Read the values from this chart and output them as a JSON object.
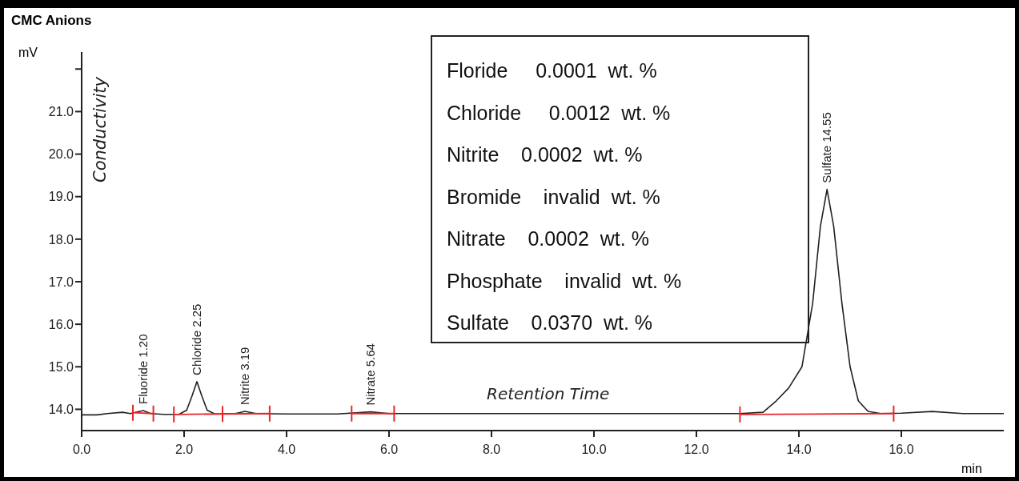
{
  "chart_data": {
    "type": "line",
    "title": "CMC Anions",
    "xlabel": "min",
    "ylabel": "mV",
    "xlim": [
      0,
      18
    ],
    "ylim": [
      13.5,
      22.4
    ],
    "xticks": [
      {
        "value": 0,
        "label": "0.0"
      },
      {
        "value": 2,
        "label": "2.0"
      },
      {
        "value": 4,
        "label": "4.0"
      },
      {
        "value": 6,
        "label": "6.0"
      },
      {
        "value": 8,
        "label": "8.0"
      },
      {
        "value": 10,
        "label": "10.0"
      },
      {
        "value": 12,
        "label": "12.0"
      },
      {
        "value": 14,
        "label": "14.0"
      },
      {
        "value": 16,
        "label": "16.0"
      }
    ],
    "yticks": [
      {
        "value": 14,
        "label": "14.0"
      },
      {
        "value": 15,
        "label": "15.0"
      },
      {
        "value": 16,
        "label": "16.0"
      },
      {
        "value": 17,
        "label": "17.0"
      },
      {
        "value": 18,
        "label": "18.0"
      },
      {
        "value": 19,
        "label": "19.0"
      },
      {
        "value": 20,
        "label": "20.0"
      },
      {
        "value": 21,
        "label": "21.0"
      },
      {
        "value": 22,
        "label": null
      }
    ],
    "grid": false,
    "series": [
      {
        "color": "#222222",
        "x": [
          0,
          0.3,
          0.5,
          0.8,
          0.95,
          1.2,
          1.35,
          1.6,
          1.9,
          2.05,
          2.15,
          2.25,
          2.35,
          2.45,
          2.6,
          3.0,
          3.19,
          3.4,
          4.0,
          5.0,
          5.64,
          6.0,
          8.0,
          10.0,
          12.0,
          12.85,
          13.3,
          13.56,
          13.8,
          14.06,
          14.27,
          14.42,
          14.55,
          14.68,
          14.84,
          15.0,
          15.16,
          15.35,
          15.6,
          16.0,
          16.6,
          17.2,
          18.0
        ],
        "values": [
          13.87,
          13.87,
          13.9,
          13.93,
          13.9,
          13.97,
          13.9,
          13.88,
          13.88,
          13.98,
          14.3,
          14.65,
          14.3,
          13.98,
          13.89,
          13.9,
          13.95,
          13.9,
          13.89,
          13.89,
          13.94,
          13.9,
          13.9,
          13.9,
          13.9,
          13.9,
          13.93,
          14.2,
          14.5,
          15.0,
          16.5,
          18.3,
          19.17,
          18.3,
          16.5,
          15.0,
          14.2,
          13.95,
          13.9,
          13.91,
          13.95,
          13.9,
          13.9
        ]
      },
      {
        "color": "#e8262a",
        "x": [
          1.0,
          1.4,
          1.45,
          1.8,
          2.75,
          3.67,
          3.7,
          5.27,
          6.1,
          6.15,
          12.85,
          15.85
        ],
        "values": [
          13.92,
          13.9,
          null,
          13.88,
          13.89,
          13.9,
          null,
          13.9,
          13.9,
          null,
          13.88,
          13.9
        ]
      }
    ],
    "annotations": [
      "Conductivity",
      "Retention Time",
      "Floride     0.0001  wt. %",
      "Chloride     0.0012  wt. %",
      "Nitrite    0.0002  wt. %",
      "Bromide    invalid  wt. %",
      "Nitrate    0.0002  wt. %",
      "Phosphate    invalid  wt. %",
      "Sulfate    0.0370  wt. %",
      {
        "text": "Fluoride 1.20",
        "x": 1.2,
        "y": 13.97
      },
      {
        "text": "Chloride 2.25",
        "x": 2.25,
        "y": 14.65
      },
      {
        "text": "Nitrite 3.19",
        "x": 3.19,
        "y": 13.95
      },
      {
        "text": "Nitrate 5.64",
        "x": 5.64,
        "y": 13.94
      },
      {
        "text": "Sulfate 14.55",
        "x": 14.55,
        "y": 19.17
      }
    ]
  }
}
